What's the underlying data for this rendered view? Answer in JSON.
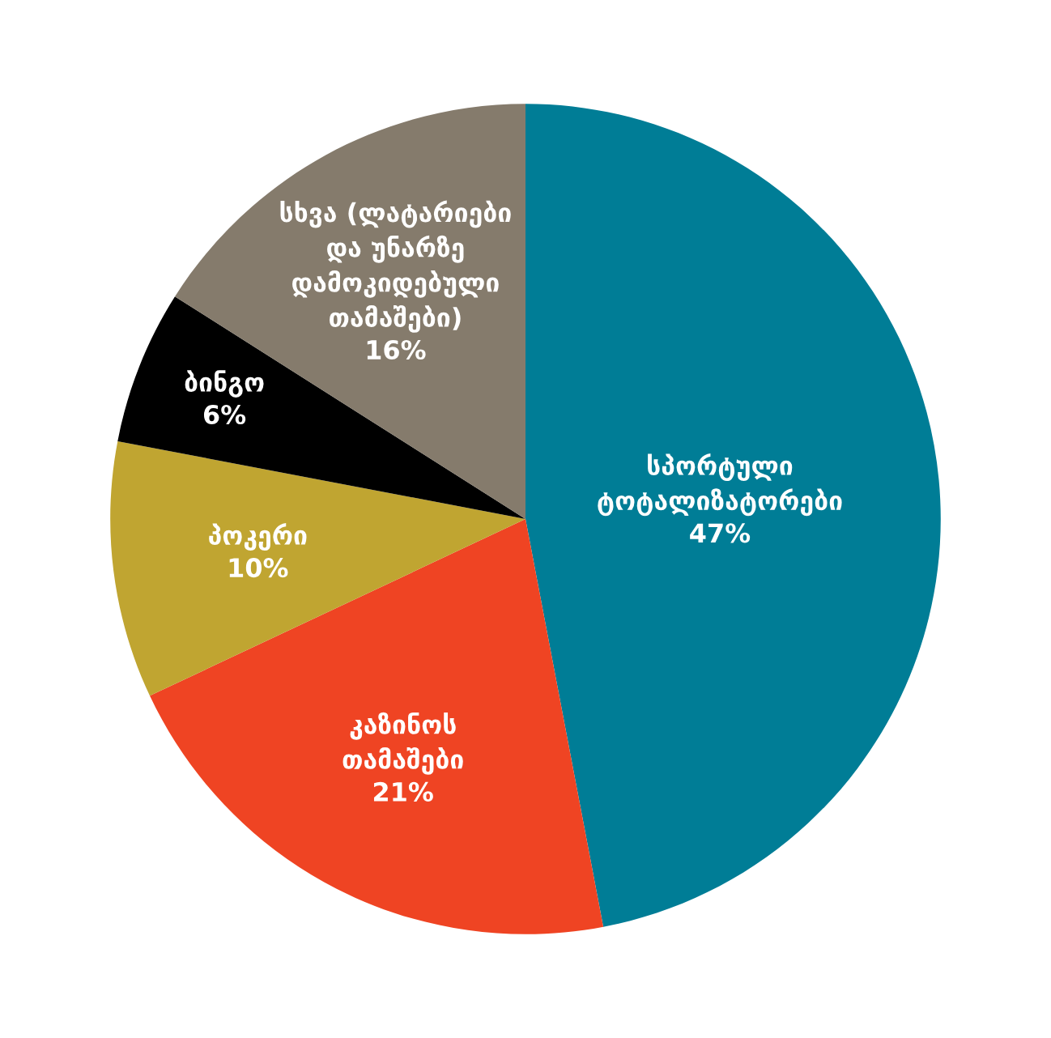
{
  "chart_data": {
    "type": "pie",
    "categories": [
      "სპორტული\nტოტალიზატორები",
      "კაზინოს\nთამაშები",
      "პოკერი",
      "ბინგო",
      "სხვა (ლატარიები\nდა უნარზე\nდამოკიდებული\nთამაშები)"
    ],
    "values": [
      47,
      21,
      10,
      6,
      16
    ],
    "value_labels": [
      "47%",
      "21%",
      "10%",
      "6%",
      "16%"
    ],
    "colors": [
      "#007d96",
      "#ef4423",
      "#c0a531",
      "#000000",
      "#857b6c"
    ]
  }
}
